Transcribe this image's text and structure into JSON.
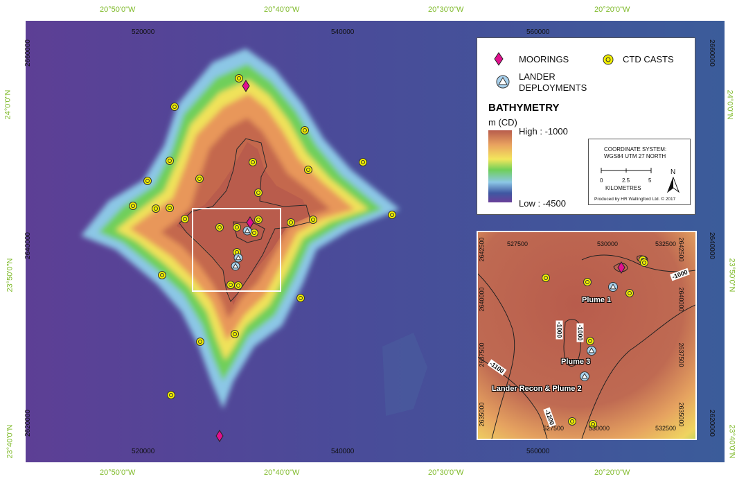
{
  "geo_top": [
    "20°50'0\"W",
    "20°40'0\"W",
    "20°30'0\"W",
    "20°20'0\"W"
  ],
  "geo_bottom": [
    "20°50'0\"W",
    "20°40'0\"W",
    "20°30'0\"W",
    "20°20'0\"W"
  ],
  "geo_left": [
    "24°0'0\"N",
    "23°50'0\"N",
    "23°40'0\"N"
  ],
  "geo_right": [
    "24°0'0\"N",
    "23°50'0\"N",
    "23°40'0\"N"
  ],
  "utm_top": [
    "520000",
    "540000",
    "560000"
  ],
  "utm_bottom": [
    "520000",
    "540000",
    "560000"
  ],
  "utm_left": [
    "2660000",
    "2640000",
    "2620000"
  ],
  "utm_right": [
    "2660000",
    "2640000",
    "2620000"
  ],
  "legend": {
    "moorings": "MOORINGS",
    "ctd": "CTD CASTS",
    "lander_1": "LANDER",
    "lander_2": "DEPLOYMENTS",
    "bathy_title": "BATHYMETRY",
    "unit": "m (CD)",
    "high": "High : -1000",
    "low": "Low : -4500",
    "coord_1": "COORDINATE SYSTEM:",
    "coord_2": "WGS84 UTM 27 NORTH",
    "scale": [
      "0",
      "2.5",
      "5"
    ],
    "scale_unit": "KILOMETRES",
    "north": "N",
    "credit": "Produced by HR Wallingford Ltd. © 2017"
  },
  "inset": {
    "utm_top": [
      "527500",
      "530000",
      "532500"
    ],
    "utm_bottom": [
      "527500",
      "530000",
      "532500"
    ],
    "utm_left": [
      "2642500",
      "2640000",
      "2637500",
      "2635000"
    ],
    "utm_right": [
      "2642500",
      "2640000",
      "2637500",
      "2635000"
    ],
    "plume1": "Plume 1",
    "plume3": "Plume 3",
    "plume2": "Lander Recon & Plume 2",
    "contours": [
      "-1000",
      "-1000",
      "-1000",
      "-1100",
      "-1200"
    ]
  },
  "colors": {
    "deep": "#5b3f93",
    "mid_blue": "#3d5a9c",
    "light_blue": "#8cc7e6",
    "green": "#6fcf5a",
    "yellow": "#f0e25a",
    "orange": "#e8975a",
    "shallow": "#b85c4c",
    "mooring": "#e0108e",
    "ctd": "#f3f000",
    "lander": "#a9d2ee",
    "geo_label": "#7fba2a"
  },
  "icons": [
    "mooring-diamond-icon",
    "ctd-circle-icon",
    "lander-triangle-icon",
    "north-arrow-icon"
  ]
}
